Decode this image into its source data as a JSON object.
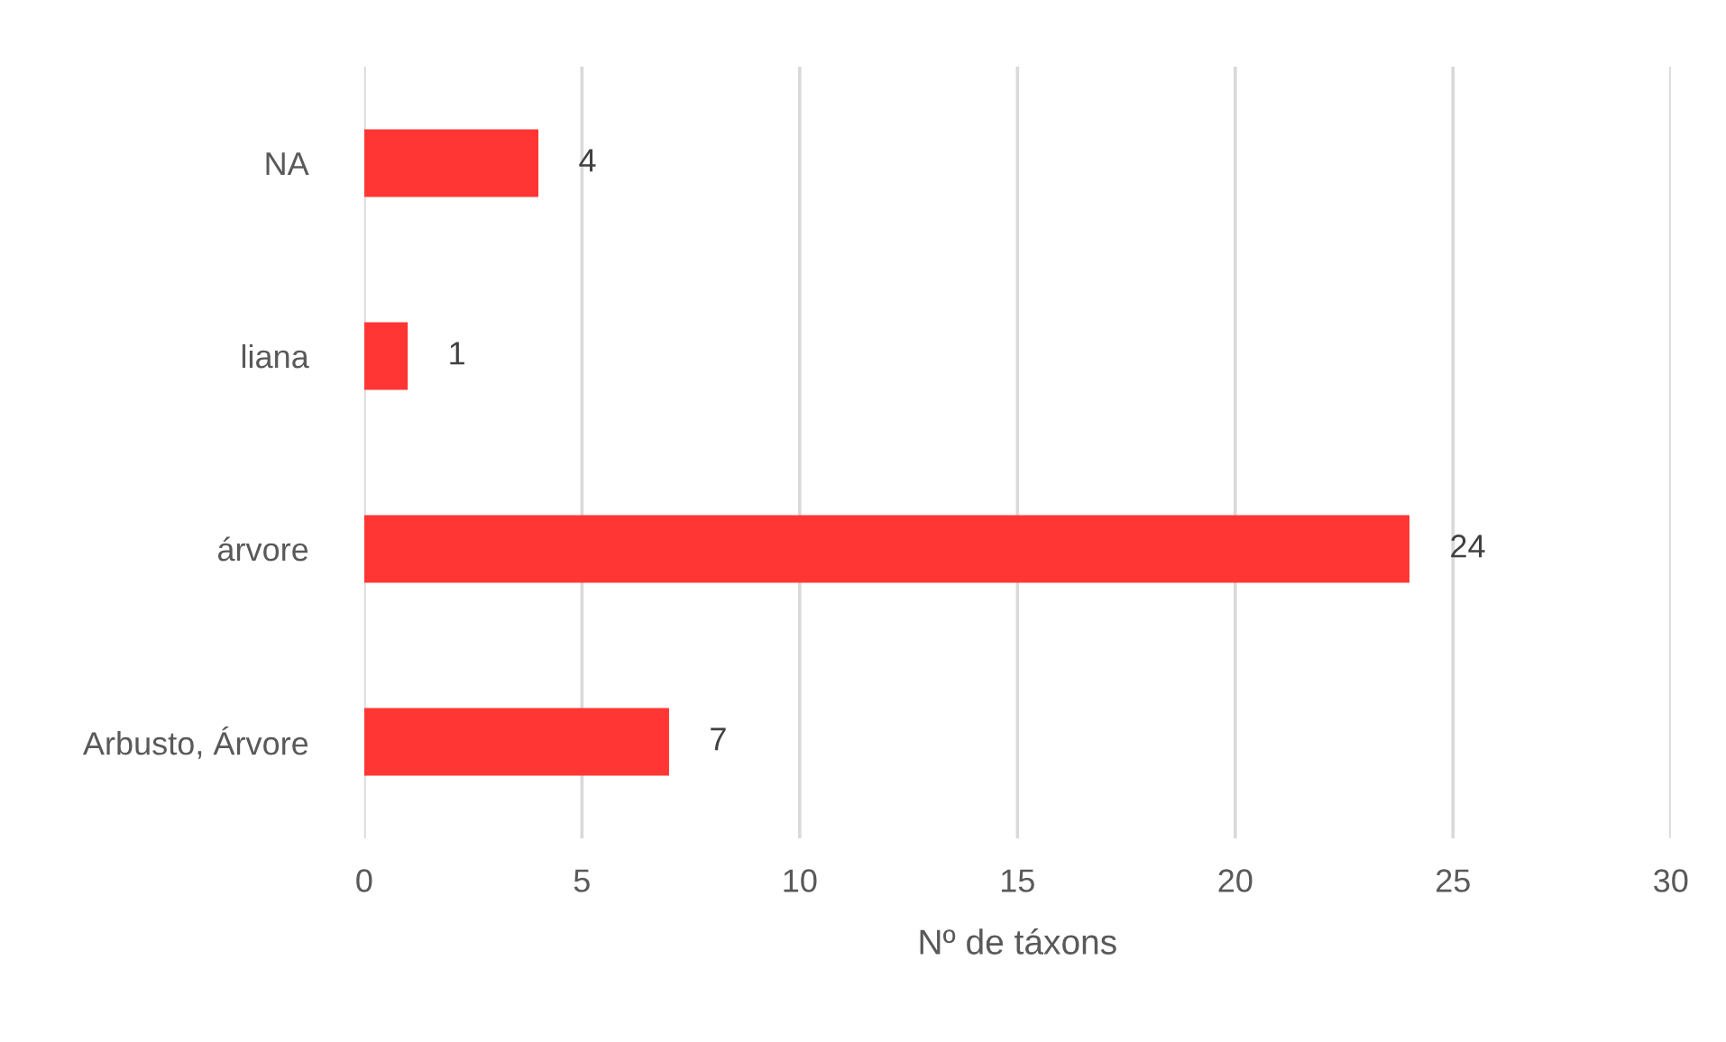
{
  "chart_data": {
    "type": "bar",
    "orientation": "horizontal",
    "categories": [
      "NA",
      "liana",
      "árvore",
      "Arbusto, Árvore"
    ],
    "values": [
      4,
      1,
      24,
      7
    ],
    "color": "#ff3633",
    "xlabel": "Nº de táxons",
    "xlim": [
      0,
      30
    ],
    "xticks": [
      0,
      5,
      10,
      15,
      20,
      25,
      30
    ],
    "grid": "x",
    "data_labels": true
  }
}
